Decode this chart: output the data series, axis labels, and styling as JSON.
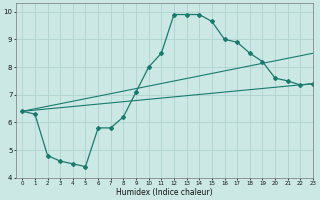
{
  "title": "",
  "xlabel": "Humidex (Indice chaleur)",
  "xlim": [
    -0.5,
    23
  ],
  "ylim": [
    4,
    10.3
  ],
  "background_color": "#cce8e4",
  "grid_color": "#aacfcb",
  "line_color": "#1a7a6e",
  "line1_x": [
    0,
    1,
    2,
    3,
    4,
    5,
    6,
    7,
    8,
    9,
    10,
    11,
    12,
    13,
    14,
    15,
    16,
    17,
    18,
    19,
    20,
    21,
    22,
    23
  ],
  "line1_y": [
    6.4,
    6.3,
    4.8,
    4.6,
    4.5,
    4.4,
    5.8,
    5.8,
    6.2,
    7.1,
    8.0,
    8.5,
    9.9,
    9.9,
    9.9,
    9.65,
    9.0,
    8.9,
    8.5,
    8.2,
    7.6,
    7.5,
    7.35,
    7.4
  ],
  "line2_x": [
    0,
    23
  ],
  "line2_y": [
    6.4,
    7.4
  ],
  "line3_x": [
    0,
    23
  ],
  "line3_y": [
    6.4,
    8.5
  ],
  "yticks": [
    4,
    5,
    6,
    7,
    8,
    9,
    10
  ],
  "xticks": [
    0,
    1,
    2,
    3,
    4,
    5,
    6,
    7,
    8,
    9,
    10,
    11,
    12,
    13,
    14,
    15,
    16,
    17,
    18,
    19,
    20,
    21,
    22,
    23
  ],
  "xtick_labels": [
    "0",
    "1",
    "2",
    "3",
    "4",
    "5",
    "6",
    "7",
    "8",
    "9",
    "10",
    "11",
    "12",
    "13",
    "14",
    "15",
    "16",
    "17",
    "18",
    "19",
    "20",
    "21",
    "22",
    "23"
  ],
  "ytick_labels": [
    "4",
    "5",
    "6",
    "7",
    "8",
    "9",
    "10"
  ]
}
